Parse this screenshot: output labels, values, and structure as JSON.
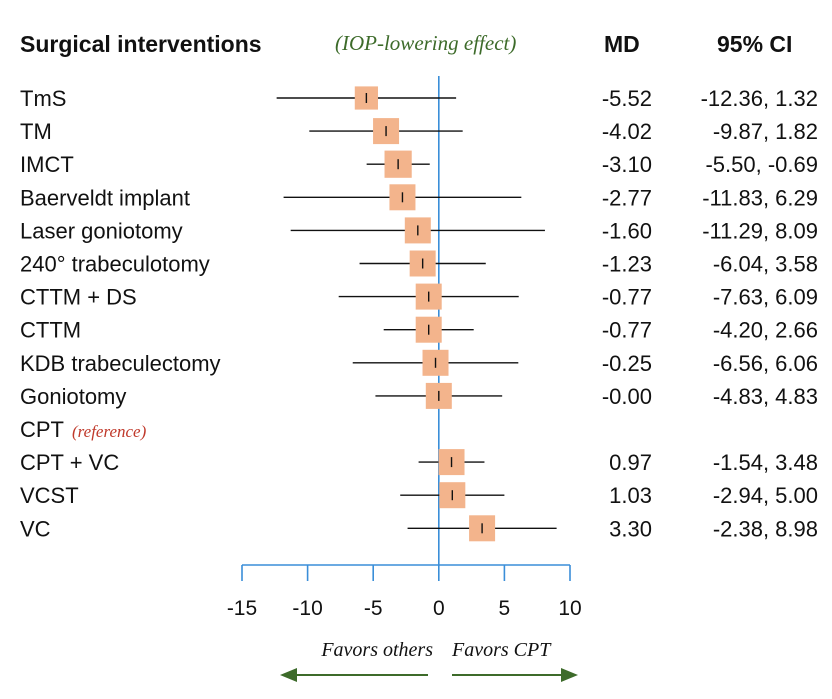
{
  "chart_data": {
    "type": "forest",
    "headers": {
      "interventions": "Surgical interventions",
      "effect": "(IOP-lowering effect)",
      "md": "MD",
      "ci": "95% CI"
    },
    "rows": [
      {
        "name": "TmS",
        "md": -5.52,
        "lo": -12.36,
        "hi": 1.32,
        "md_text": "-5.52",
        "ci_text": "-12.36, 1.32",
        "size": 0.58
      },
      {
        "name": "TM",
        "md": -4.02,
        "lo": -9.87,
        "hi": 1.82,
        "md_text": "-4.02",
        "ci_text": "-9.87, 1.82",
        "size": 0.65
      },
      {
        "name": "IMCT",
        "md": -3.1,
        "lo": -5.5,
        "hi": -0.69,
        "md_text": "-3.10",
        "ci_text": "-5.50, -0.69",
        "size": 0.68
      },
      {
        "name": "Baerveldt implant",
        "md": -2.77,
        "lo": -11.83,
        "hi": 6.29,
        "md_text": "-2.77",
        "ci_text": "-11.83, 6.29",
        "size": 0.65
      },
      {
        "name": "Laser goniotomy",
        "md": -1.6,
        "lo": -11.29,
        "hi": 8.09,
        "md_text": "-1.60",
        "ci_text": "-11.29, 8.09",
        "size": 0.65
      },
      {
        "name": "240° trabeculotomy",
        "md": -1.23,
        "lo": -6.04,
        "hi": 3.58,
        "md_text": "-1.23",
        "ci_text": "-6.04, 3.58",
        "size": 0.65
      },
      {
        "name": "CTTM + DS",
        "md": -0.77,
        "lo": -7.63,
        "hi": 6.09,
        "md_text": "-0.77",
        "ci_text": "-7.63, 6.09",
        "size": 0.65
      },
      {
        "name": "CTTM",
        "md": -0.77,
        "lo": -4.2,
        "hi": 2.66,
        "md_text": "-0.77",
        "ci_text": "-4.20, 2.66",
        "size": 0.65
      },
      {
        "name": "KDB trabeculectomy",
        "md": -0.25,
        "lo": -6.56,
        "hi": 6.06,
        "md_text": "-0.25",
        "ci_text": "-6.56, 6.06",
        "size": 0.65
      },
      {
        "name": "Goniotomy",
        "md": -0.0,
        "lo": -4.83,
        "hi": 4.83,
        "md_text": "-0.00",
        "ci_text": "-4.83, 4.83",
        "size": 0.65
      },
      {
        "name": "CPT",
        "reference_note": "(reference)",
        "md": null,
        "lo": null,
        "hi": null,
        "md_text": "",
        "ci_text": ""
      },
      {
        "name": "CPT + VC",
        "md": 0.97,
        "lo": -1.54,
        "hi": 3.48,
        "md_text": "0.97",
        "ci_text": "-1.54, 3.48",
        "size": 0.65
      },
      {
        "name": "VCST",
        "md": 1.03,
        "lo": -2.94,
        "hi": 5.0,
        "md_text": "1.03",
        "ci_text": "-2.94, 5.00",
        "size": 0.65
      },
      {
        "name": "VC",
        "md": 3.3,
        "lo": -2.38,
        "hi": 8.98,
        "md_text": "3.30",
        "ci_text": "-2.38, 8.98",
        "size": 0.65
      }
    ],
    "x_axis": {
      "ticks": [
        -15,
        -10,
        -5,
        0,
        5,
        10
      ],
      "tick_labels": [
        "-15",
        "-10",
        "-5",
        "0",
        "5",
        "10"
      ],
      "xlim": [
        -15,
        10
      ]
    },
    "favors_left": "Favors others",
    "favors_right": "Favors CPT",
    "colors": {
      "marker": "#f3b48c",
      "axis": "#3a8ed8",
      "arrow": "#3d6b2a",
      "effect_label": "#3d6b2a",
      "reference_label": "#c0392b"
    }
  }
}
